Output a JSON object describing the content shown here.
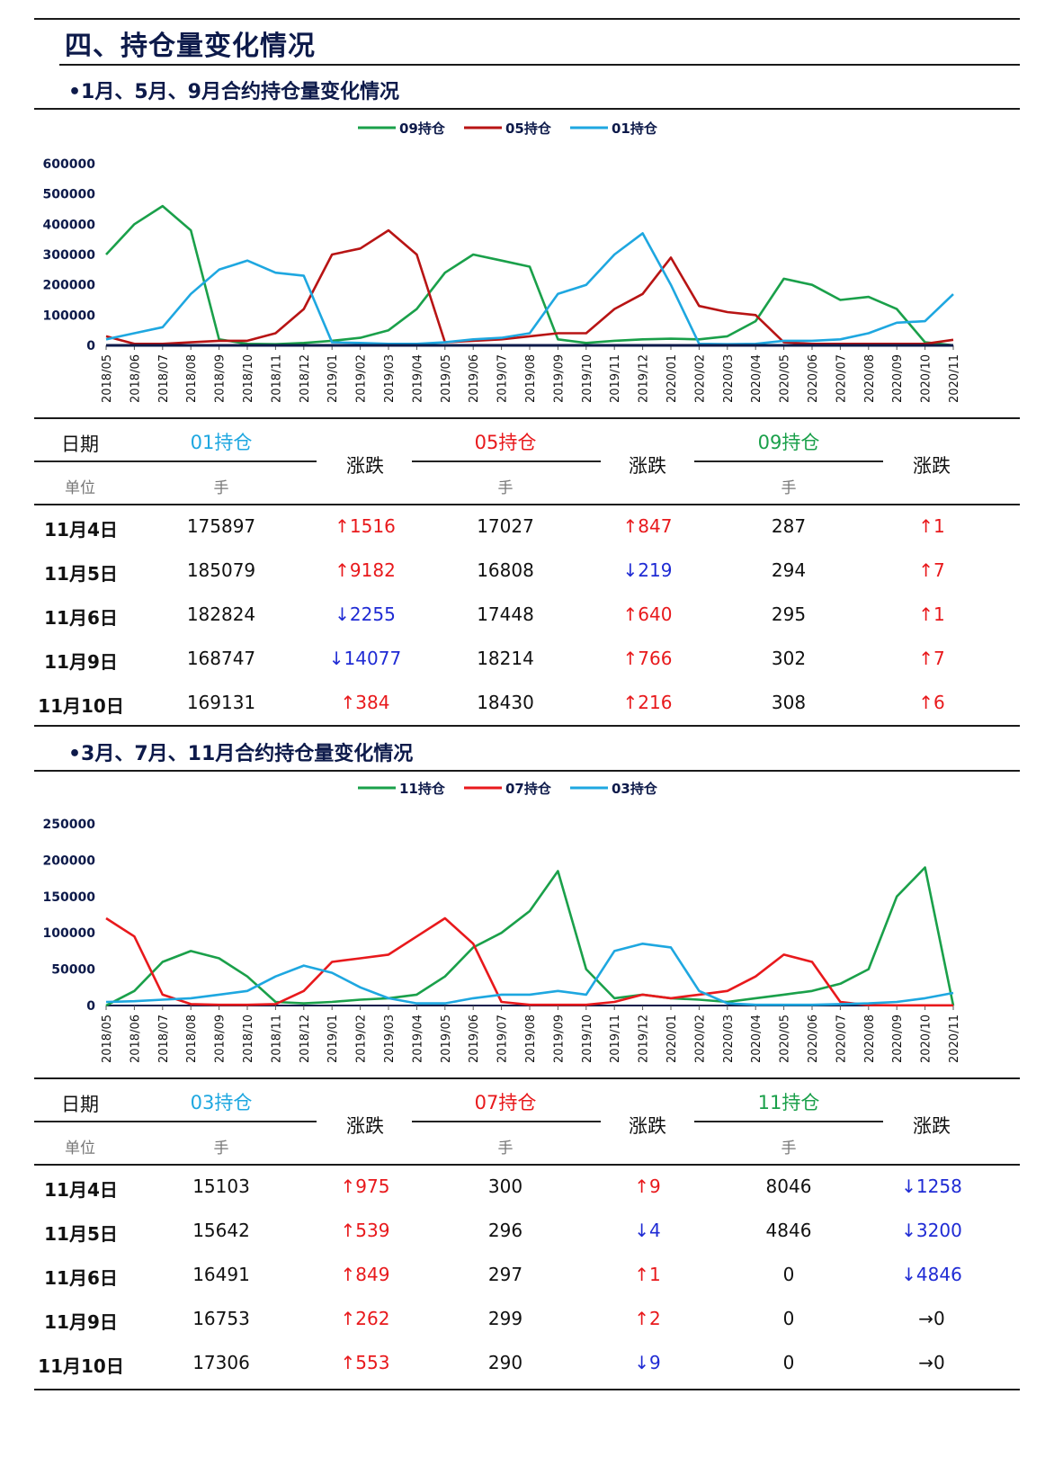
{
  "section_title": "四、持仓量变化情况",
  "sections": [
    {
      "subtitle": "•1月、5月、9月合约持仓量变化情况",
      "table": {
        "date_header": "日期",
        "unit_header": "单位",
        "columns": [
          {
            "name": "01持仓",
            "unit": "手",
            "color": "#1ea7e0"
          },
          {
            "name": "05持仓",
            "unit": "手",
            "color": "#e8191c"
          },
          {
            "name": "09持仓",
            "unit": "手",
            "color": "#1aa04a"
          }
        ],
        "change_header": "涨跌",
        "rows": [
          {
            "date": "11月4日",
            "values": [
              "175897",
              "17027",
              "287"
            ],
            "changes": [
              "↑1516",
              "↑847",
              "↑1"
            ],
            "dirs": [
              "up",
              "up",
              "up"
            ]
          },
          {
            "date": "11月5日",
            "values": [
              "185079",
              "16808",
              "294"
            ],
            "changes": [
              "↑9182",
              "↓219",
              "↑7"
            ],
            "dirs": [
              "up",
              "down",
              "up"
            ]
          },
          {
            "date": "11月6日",
            "values": [
              "182824",
              "17448",
              "295"
            ],
            "changes": [
              "↓2255",
              "↑640",
              "↑1"
            ],
            "dirs": [
              "down",
              "up",
              "up"
            ]
          },
          {
            "date": "11月9日",
            "values": [
              "168747",
              "18214",
              "302"
            ],
            "changes": [
              "↓14077",
              "↑766",
              "↑7"
            ],
            "dirs": [
              "down",
              "up",
              "up"
            ]
          },
          {
            "date": "11月10日",
            "values": [
              "169131",
              "18430",
              "308"
            ],
            "changes": [
              "↑384",
              "↑216",
              "↑6"
            ],
            "dirs": [
              "up",
              "up",
              "up"
            ]
          }
        ]
      }
    },
    {
      "subtitle": "•3月、7月、11月合约持仓量变化情况",
      "table": {
        "date_header": "日期",
        "unit_header": "单位",
        "columns": [
          {
            "name": "03持仓",
            "unit": "手",
            "color": "#1ea7e0"
          },
          {
            "name": "07持仓",
            "unit": "手",
            "color": "#e8191c"
          },
          {
            "name": "11持仓",
            "unit": "手",
            "color": "#1aa04a"
          }
        ],
        "change_header": "涨跌",
        "rows": [
          {
            "date": "11月4日",
            "values": [
              "15103",
              "300",
              "8046"
            ],
            "changes": [
              "↑975",
              "↑9",
              "↓1258"
            ],
            "dirs": [
              "up",
              "up",
              "down"
            ]
          },
          {
            "date": "11月5日",
            "values": [
              "15642",
              "296",
              "4846"
            ],
            "changes": [
              "↑539",
              "↓4",
              "↓3200"
            ],
            "dirs": [
              "up",
              "down",
              "down"
            ]
          },
          {
            "date": "11月6日",
            "values": [
              "16491",
              "297",
              "0"
            ],
            "changes": [
              "↑849",
              "↑1",
              "↓4846"
            ],
            "dirs": [
              "up",
              "up",
              "down"
            ]
          },
          {
            "date": "11月9日",
            "values": [
              "16753",
              "299",
              "0"
            ],
            "changes": [
              "↑262",
              "↑2",
              "→0"
            ],
            "dirs": [
              "up",
              "up",
              "flat"
            ]
          },
          {
            "date": "11月10日",
            "values": [
              "17306",
              "290",
              "0"
            ],
            "changes": [
              "↑553",
              "↓9",
              "→0"
            ],
            "dirs": [
              "up",
              "down",
              "flat"
            ]
          }
        ]
      }
    }
  ],
  "chart_data": [
    {
      "type": "line",
      "x": [
        "2018/05",
        "2018/06",
        "2018/07",
        "2018/08",
        "2018/09",
        "2018/10",
        "2018/11",
        "2018/12",
        "2019/01",
        "2019/02",
        "2019/03",
        "2019/04",
        "2019/05",
        "2019/06",
        "2019/07",
        "2019/08",
        "2019/09",
        "2019/10",
        "2019/11",
        "2019/12",
        "2020/01",
        "2020/02",
        "2020/03",
        "2020/04",
        "2020/05",
        "2020/06",
        "2020/07",
        "2020/08",
        "2020/09",
        "2020/10",
        "2020/11"
      ],
      "ylim": [
        0,
        600000
      ],
      "yticks": [
        "600000",
        "500000",
        "400000",
        "300000",
        "200000",
        "100000",
        "0"
      ],
      "legend_position": "top",
      "series": [
        {
          "name": "09持仓",
          "color": "#1aa04a",
          "values": [
            300000,
            400000,
            460000,
            380000,
            20000,
            5000,
            4000,
            8000,
            15000,
            25000,
            50000,
            120000,
            240000,
            300000,
            280000,
            260000,
            20000,
            8000,
            15000,
            20000,
            22000,
            20000,
            30000,
            80000,
            220000,
            200000,
            150000,
            160000,
            120000,
            10000,
            300
          ]
        },
        {
          "name": "05持仓",
          "color": "#b81414",
          "values": [
            30000,
            5000,
            5000,
            10000,
            15000,
            15000,
            40000,
            120000,
            300000,
            320000,
            380000,
            300000,
            10000,
            15000,
            20000,
            30000,
            40000,
            40000,
            120000,
            170000,
            290000,
            130000,
            110000,
            100000,
            10000,
            5000,
            5000,
            5000,
            5000,
            5000,
            18430
          ]
        },
        {
          "name": "01持仓",
          "color": "#1ea7e0",
          "values": [
            20000,
            40000,
            60000,
            170000,
            250000,
            280000,
            240000,
            230000,
            10000,
            8000,
            5000,
            5000,
            10000,
            20000,
            25000,
            40000,
            170000,
            200000,
            300000,
            370000,
            200000,
            5000,
            4000,
            5000,
            15000,
            15000,
            20000,
            40000,
            75000,
            80000,
            169131
          ]
        },
        {
          "name": "",
          "color": "#0d1a4a",
          "values": [
            0,
            0,
            0,
            0,
            0,
            0,
            0,
            0,
            0,
            0,
            0,
            0,
            0,
            0,
            0,
            0,
            0,
            0,
            0,
            0,
            0,
            0,
            0,
            0,
            0,
            0,
            0,
            0,
            0,
            0,
            0
          ]
        }
      ]
    },
    {
      "type": "line",
      "x": [
        "2018/05",
        "2018/06",
        "2018/07",
        "2018/08",
        "2018/09",
        "2018/10",
        "2018/11",
        "2018/12",
        "2019/01",
        "2019/02",
        "2019/03",
        "2019/04",
        "2019/05",
        "2019/06",
        "2019/07",
        "2019/08",
        "2019/09",
        "2019/10",
        "2019/11",
        "2019/12",
        "2020/01",
        "2020/02",
        "2020/03",
        "2020/04",
        "2020/05",
        "2020/06",
        "2020/07",
        "2020/08",
        "2020/09",
        "2020/10",
        "2020/11"
      ],
      "ylim": [
        0,
        250000
      ],
      "yticks": [
        "250000",
        "200000",
        "150000",
        "100000",
        "50000",
        "0"
      ],
      "legend_position": "top",
      "series": [
        {
          "name": "11持仓",
          "color": "#1aa04a",
          "values": [
            0,
            20000,
            60000,
            75000,
            65000,
            40000,
            5000,
            3000,
            5000,
            8000,
            10000,
            15000,
            40000,
            80000,
            100000,
            130000,
            185000,
            50000,
            10000,
            15000,
            10000,
            8000,
            5000,
            10000,
            15000,
            20000,
            30000,
            50000,
            150000,
            190000,
            0
          ]
        },
        {
          "name": "07持仓",
          "color": "#e8191c",
          "values": [
            120000,
            95000,
            15000,
            2000,
            1000,
            1000,
            2000,
            20000,
            60000,
            65000,
            70000,
            95000,
            120000,
            85000,
            5000,
            1000,
            1000,
            1000,
            5000,
            15000,
            10000,
            15000,
            20000,
            40000,
            70000,
            60000,
            5000,
            500,
            300,
            300,
            290
          ]
        },
        {
          "name": "03持仓",
          "color": "#1ea7e0",
          "values": [
            5000,
            6000,
            8000,
            10000,
            15000,
            20000,
            40000,
            55000,
            45000,
            25000,
            10000,
            3000,
            3000,
            10000,
            15000,
            15000,
            20000,
            15000,
            75000,
            85000,
            80000,
            20000,
            3000,
            1000,
            1000,
            1000,
            2000,
            3000,
            5000,
            10000,
            17306
          ]
        }
      ]
    }
  ]
}
